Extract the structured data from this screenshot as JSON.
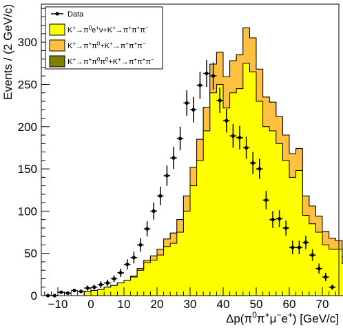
{
  "chart_data": {
    "type": "bar",
    "xlabel_parts": [
      "Δp(π",
      "0",
      "π",
      "+",
      "μ",
      "−",
      "e",
      "+",
      ") [GeV/c]"
    ],
    "ylabel": "Events / (2 GeV/c)",
    "xlim": [
      -15,
      75
    ],
    "ylim": [
      0,
      345
    ],
    "xticks": [
      -10,
      0,
      10,
      20,
      30,
      40,
      50,
      60,
      70
    ],
    "yticks": [
      0,
      50,
      100,
      150,
      200,
      250,
      300
    ],
    "bin_edges_start": -14,
    "bin_width": 2,
    "series": [
      {
        "name": "K+→π0e+ν+K+→π+π+π−",
        "color": "#ffff00",
        "values": [
          0,
          0,
          0,
          0,
          0,
          0,
          5,
          6,
          7,
          10,
          12,
          15,
          18,
          22,
          30,
          39,
          42,
          48,
          58,
          62,
          75,
          100,
          130,
          160,
          195,
          240,
          250,
          222,
          240,
          245,
          275,
          265,
          230,
          200,
          195,
          180,
          160,
          140,
          148,
          95,
          85,
          75,
          60,
          55,
          55,
          38,
          25,
          15,
          8
        ]
      },
      {
        "name": "K+→π+π0+K+→π+π+π−",
        "color": "#ffc040",
        "values": [
          0,
          0,
          0,
          0,
          0,
          0,
          0,
          0,
          0,
          0,
          0,
          0,
          0,
          1,
          2,
          3,
          5,
          7,
          9,
          12,
          15,
          18,
          22,
          25,
          28,
          34,
          38,
          37,
          38,
          40,
          42,
          40,
          38,
          35,
          34,
          32,
          30,
          28,
          26,
          23,
          21,
          19,
          16,
          13,
          10,
          8,
          5,
          3,
          1
        ]
      },
      {
        "name": "K+→π+π0π0+K+→π+π+π−",
        "color": "#808000",
        "values": [
          0,
          0,
          0,
          0,
          0,
          0,
          0,
          0,
          0,
          0,
          0,
          0,
          0,
          0,
          0,
          0,
          0,
          0,
          0,
          0,
          0,
          0,
          0,
          0,
          0,
          0,
          0,
          0,
          0,
          0,
          0,
          0,
          0,
          0,
          0,
          0,
          0,
          0,
          0,
          0,
          0,
          0,
          0,
          0,
          0,
          0,
          0,
          0,
          0
        ]
      }
    ],
    "data_points": {
      "name": "Data",
      "x": [
        -13,
        -11,
        -9,
        -7,
        -5,
        -3,
        -1,
        1,
        3,
        5,
        7,
        9,
        11,
        13,
        15,
        17,
        19,
        21,
        23,
        25,
        27,
        29,
        31,
        33,
        35,
        37,
        39,
        41,
        43,
        45,
        47,
        49,
        51,
        53,
        55,
        57,
        59,
        61,
        63,
        65,
        67,
        69,
        71,
        73
      ],
      "y": [
        0,
        0,
        4,
        3,
        6,
        5,
        9,
        10,
        13,
        15,
        20,
        27,
        37,
        45,
        60,
        79,
        100,
        118,
        142,
        163,
        186,
        228,
        220,
        249,
        263,
        260,
        231,
        207,
        189,
        187,
        175,
        157,
        150,
        113,
        90,
        91,
        80,
        57,
        57,
        63,
        48,
        32,
        22,
        10
      ],
      "err": [
        0,
        1,
        2,
        2,
        2,
        2,
        3,
        3,
        4,
        4,
        4,
        5,
        6,
        7,
        8,
        9,
        10,
        11,
        12,
        13,
        14,
        15,
        15,
        16,
        16,
        16,
        15,
        14,
        14,
        14,
        13,
        13,
        12,
        11,
        10,
        10,
        9,
        8,
        8,
        8,
        7,
        6,
        5,
        3
      ]
    },
    "legend": {
      "position": "top-left",
      "entries": [
        {
          "key": "data",
          "label_parts": [
            "Data"
          ]
        },
        {
          "key": "s0",
          "label_parts": [
            "K",
            "+",
            "→π",
            "0",
            "e",
            "+",
            "ν+K",
            "+",
            "→π",
            "+",
            "π",
            "+",
            "π",
            "−"
          ]
        },
        {
          "key": "s1",
          "label_parts": [
            "K",
            "+",
            "→π",
            "+",
            "π",
            "0",
            "+K",
            "+",
            "→π",
            "+",
            "π",
            "+",
            "π",
            "−"
          ]
        },
        {
          "key": "s2",
          "label_parts": [
            "K",
            "+",
            "→π",
            "+",
            "π",
            "0",
            "π",
            "0",
            "+K",
            "+",
            "→π",
            "+",
            "π",
            "+",
            "π",
            "−"
          ]
        }
      ]
    }
  }
}
